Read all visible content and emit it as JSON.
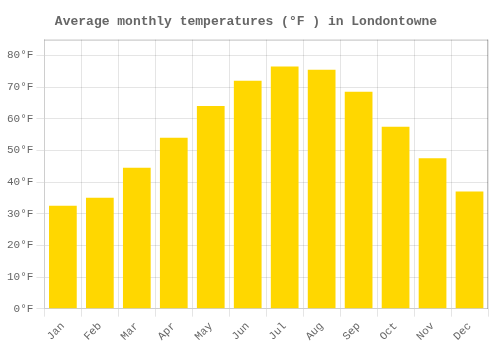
{
  "chart_data": {
    "type": "bar",
    "title": "Average monthly temperatures (°F ) in Londontowne",
    "categories": [
      "Jan",
      "Feb",
      "Mar",
      "Apr",
      "May",
      "Jun",
      "Jul",
      "Aug",
      "Sep",
      "Oct",
      "Nov",
      "Dec"
    ],
    "values": [
      32.5,
      35.0,
      44.5,
      54.0,
      64.0,
      72.0,
      76.5,
      75.5,
      68.5,
      57.5,
      47.5,
      37.0
    ],
    "color": "#FFD700",
    "ylim": [
      0,
      85
    ],
    "yticks": [
      {
        "value": 0,
        "label": "0°F"
      },
      {
        "value": 10,
        "label": "10°F"
      },
      {
        "value": 20,
        "label": "20°F"
      },
      {
        "value": 30,
        "label": "30°F"
      },
      {
        "value": 40,
        "label": "40°F"
      },
      {
        "value": 50,
        "label": "50°F"
      },
      {
        "value": 60,
        "label": "60°F"
      },
      {
        "value": 70,
        "label": "70°F"
      },
      {
        "value": 80,
        "label": "80°F"
      }
    ],
    "grid": true
  }
}
